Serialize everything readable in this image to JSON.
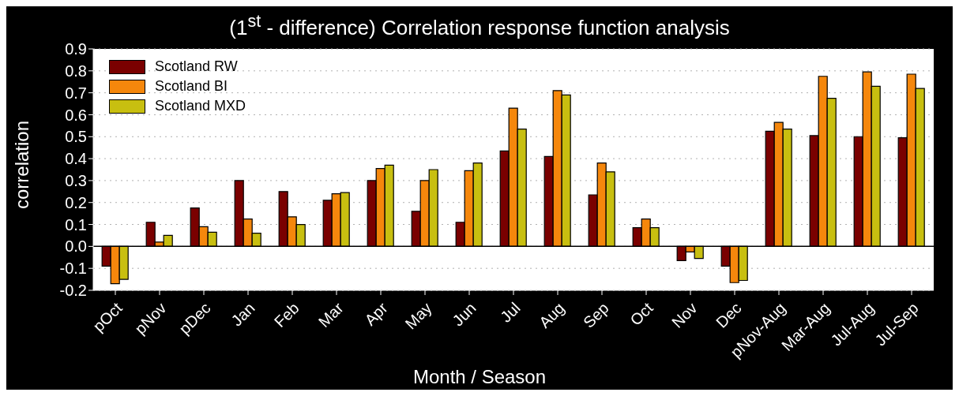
{
  "chart_data": {
    "type": "bar",
    "title": "(1$^{st}$ - difference) Correlation response function analysis",
    "xlabel": "Month / Season",
    "ylabel": "correlation",
    "categories": [
      "pOct",
      "pNov",
      "pDec",
      "Jan",
      "Feb",
      "Mar",
      "Apr",
      "May",
      "Jun",
      "Jul",
      "Aug",
      "Sep",
      "Oct",
      "Nov",
      "Dec",
      "pNov-Aug",
      "Mar-Aug",
      "Jul-Aug",
      "Jul-Sep"
    ],
    "series": [
      {
        "name": "Scotland RW",
        "color": "#7a0000",
        "values": [
          -0.09,
          0.11,
          0.175,
          0.3,
          0.25,
          0.21,
          0.3,
          0.16,
          0.11,
          0.435,
          0.41,
          0.235,
          0.085,
          -0.065,
          -0.09,
          0.525,
          0.505,
          0.5,
          0.495
        ]
      },
      {
        "name": "Scotland BI",
        "color": "#f5870c",
        "values": [
          -0.17,
          0.02,
          0.09,
          0.125,
          0.135,
          0.24,
          0.355,
          0.3,
          0.345,
          0.63,
          0.71,
          0.38,
          0.125,
          -0.025,
          -0.165,
          0.565,
          0.775,
          0.795,
          0.785
        ]
      },
      {
        "name": "Scotland MXD",
        "color": "#c8bf10",
        "values": [
          -0.15,
          0.05,
          0.065,
          0.06,
          0.1,
          0.245,
          0.37,
          0.35,
          0.38,
          0.535,
          0.69,
          0.34,
          0.085,
          -0.055,
          -0.155,
          0.535,
          0.675,
          0.73,
          0.72
        ]
      }
    ],
    "ylim": [
      -0.2,
      0.9
    ],
    "yticks": [
      -0.2,
      -0.1,
      {
        "value": 0,
        "label": "0.0"
      },
      0.1,
      0.2,
      0.3,
      0.4,
      0.5,
      0.6,
      0.7,
      0.8,
      0.9
    ],
    "grid": "y",
    "legend": "top left"
  }
}
